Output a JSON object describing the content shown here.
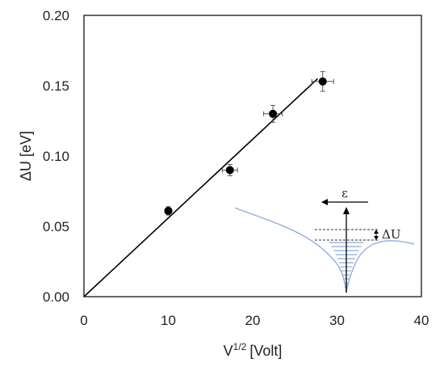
{
  "chart_data": {
    "type": "scatter",
    "xlabel": "V",
    "xlabel_sup": "1/2",
    "xlabel_unit": "[Volt]",
    "ylabel": "ΔU [eV]",
    "xlim": [
      0,
      40
    ],
    "ylim": [
      0,
      0.2
    ],
    "x_ticks": [
      0,
      10,
      20,
      30,
      40
    ],
    "y_ticks": [
      "0.00",
      "0.05",
      "0.10",
      "0.15",
      "0.20"
    ],
    "grid": false,
    "series": [
      {
        "points": [
          {
            "x": 10.0,
            "y": 0.061,
            "xerr": 0.4,
            "yerr": 0.003
          },
          {
            "x": 17.3,
            "y": 0.09,
            "xerr": 0.9,
            "yerr": 0.004
          },
          {
            "x": 22.4,
            "y": 0.13,
            "xerr": 1.1,
            "yerr": 0.006
          },
          {
            "x": 28.3,
            "y": 0.153,
            "xerr": 1.3,
            "yerr": 0.007
          }
        ]
      }
    ],
    "fit_line": {
      "from": [
        0,
        0
      ],
      "to": [
        27.7,
        0.155
      ]
    },
    "inset": {
      "epsilon_label": "ε",
      "delta_u_label": "ΔU",
      "curve_color": "#8db0dc",
      "fill_line_color": "#6f93c4"
    }
  }
}
